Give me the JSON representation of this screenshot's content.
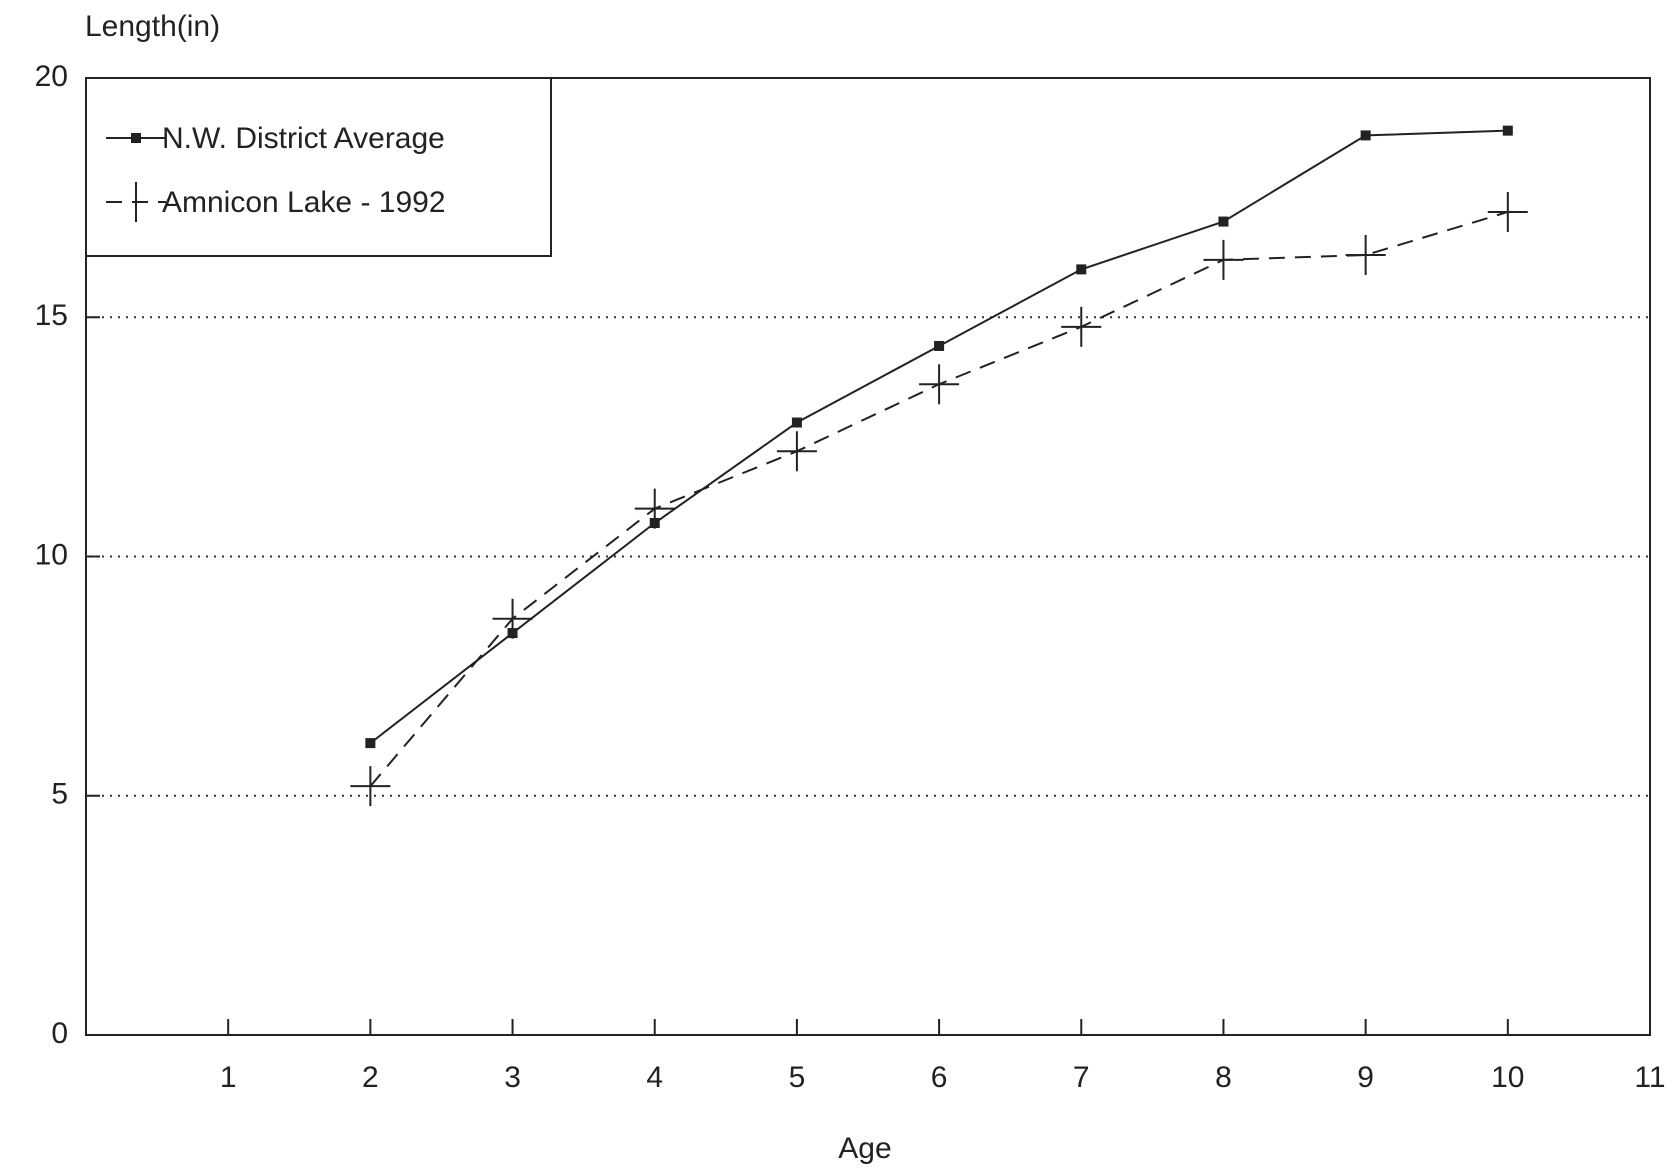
{
  "chart_data": {
    "type": "line",
    "y_label": "Length(in)",
    "x_label": "Age",
    "xlim": [
      0,
      11
    ],
    "xticks": [
      1,
      2,
      3,
      4,
      5,
      6,
      7,
      8,
      9,
      10,
      11
    ],
    "ylim": [
      0,
      20
    ],
    "yticks": [
      0,
      5,
      10,
      15,
      20
    ],
    "grid": true,
    "legend": "upper-left",
    "series": [
      {
        "name": "N.W. District Average",
        "color": "#222222",
        "dash": "solid",
        "marker": "square",
        "x": [
          2,
          3,
          4,
          5,
          6,
          7,
          8,
          9,
          10
        ],
        "values": [
          6.1,
          8.4,
          10.7,
          12.8,
          14.4,
          16.0,
          17.0,
          18.8,
          18.9
        ]
      },
      {
        "name": "Amnicon Lake - 1992",
        "color": "#222222",
        "dash": "dashed",
        "marker": "plus",
        "x": [
          2,
          3,
          4,
          5,
          6,
          7,
          8,
          9,
          10
        ],
        "values": [
          5.2,
          8.7,
          11.0,
          12.2,
          13.6,
          14.8,
          16.2,
          16.3,
          17.2
        ]
      }
    ]
  }
}
